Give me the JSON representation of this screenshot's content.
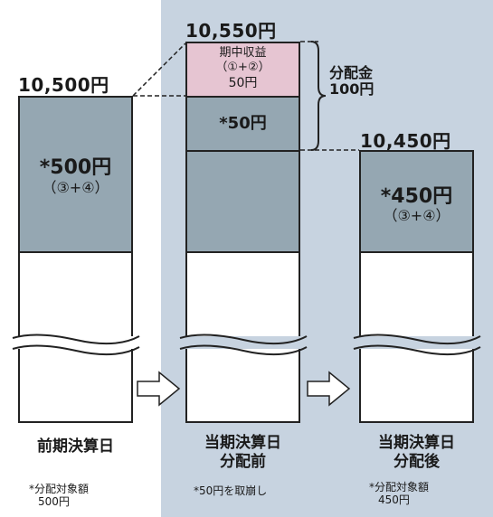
{
  "colors": {
    "panel": "#c7d3e0",
    "gray": "#95a7b2",
    "pink": "#e6c5d2",
    "line": "#222222"
  },
  "col1": {
    "total": "10,500円",
    "seg_text": "*500円",
    "seg_sub": "（③+④）",
    "label": "前期決算日",
    "note_line1": "*分配対象額",
    "note_line2": "500円"
  },
  "col2": {
    "total": "10,550円",
    "income_line1": "期中収益",
    "income_line2": "（①+②）",
    "income_line3": "50円",
    "seg_text": "*50円",
    "label_line1": "当期決算日",
    "label_line2": "分配前",
    "note": "*50円を取崩し"
  },
  "distribution": {
    "line1": "分配金",
    "line2": "100円"
  },
  "col3": {
    "total": "10,450円",
    "seg_text": "*450円",
    "seg_sub": "（③+④）",
    "label_line1": "当期決算日",
    "label_line2": "分配後",
    "note_line1": "*分配対象額",
    "note_line2": "450円"
  },
  "icons": {
    "arrow1": "right-arrow-icon",
    "arrow2": "right-arrow-icon"
  }
}
